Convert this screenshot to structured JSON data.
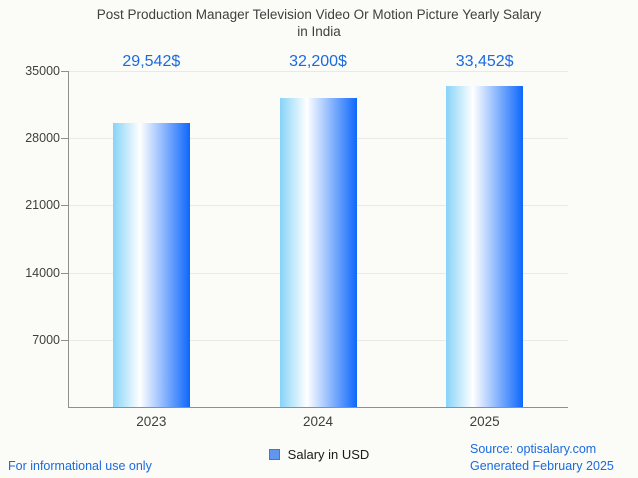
{
  "title": {
    "line1": "Post Production Manager Television Video Or Motion Picture Yearly Salary",
    "line2": "in India"
  },
  "chart_data": {
    "type": "bar",
    "title": "Post Production Manager Television Video Or Motion Picture Yearly Salary in India",
    "categories": [
      "2023",
      "2024",
      "2025"
    ],
    "series": [
      {
        "name": "Salary in USD",
        "values": [
          29542,
          32200,
          33452
        ]
      }
    ],
    "value_labels": [
      "29,542$",
      "32,200$",
      "33,452$"
    ],
    "xlabel": "",
    "ylabel": "",
    "ylim": [
      0,
      35000
    ],
    "yticks": [
      7000,
      14000,
      21000,
      28000,
      35000
    ],
    "grid": true,
    "legend_position": "bottom"
  },
  "legend": {
    "label": "Salary in USD"
  },
  "footer": {
    "disclaimer": "For informational use only",
    "source": "Source: optisalary.com",
    "generated": "Generated February 2025"
  },
  "colors": {
    "accent": "#1a6be0",
    "bar-left": "#87d3f8",
    "bar-mid": "#ffffff",
    "bar-right": "#0d67fb",
    "legend-fill": "#6296ec",
    "legend-border": "#4377cf",
    "axis": "#8f8f8f",
    "grid": "#e9e9e6",
    "text": "#3f3f3f",
    "background": "#fbfbf8"
  }
}
